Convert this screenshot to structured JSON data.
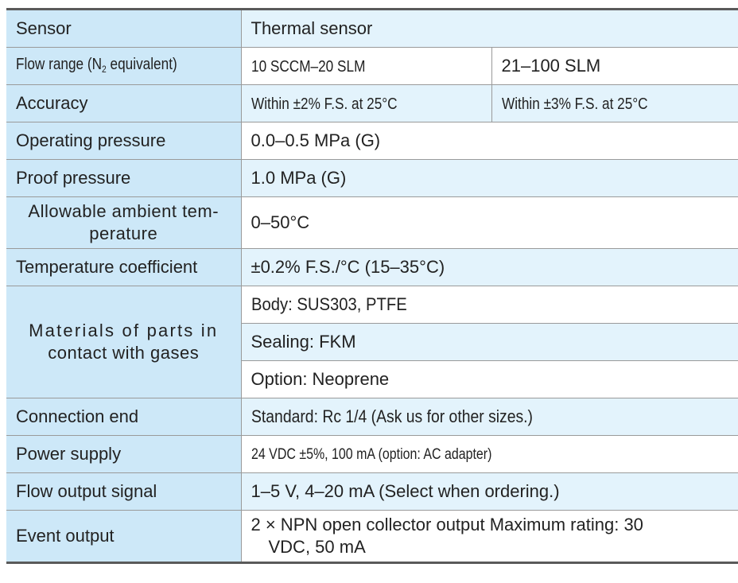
{
  "rows": {
    "sensor": {
      "label": "Sensor",
      "value": "Thermal sensor"
    },
    "flow_range": {
      "label_pre": "Flow range (N",
      "label_sub": "2",
      "label_post": " equivalent)",
      "value_a": "10 SCCM–20 SLM",
      "value_b": "21–100 SLM"
    },
    "accuracy": {
      "label": "Accuracy",
      "value_a": "Within ±2% F.S. at 25°C",
      "value_b": "Within ±3% F.S. at 25°C"
    },
    "operating_pressure": {
      "label": "Operating pressure",
      "value": "0.0–0.5 MPa (G)"
    },
    "proof_pressure": {
      "label": "Proof pressure",
      "value": "1.0 MPa (G)"
    },
    "ambient_temp": {
      "label_line1": "Allowable ambient tem-",
      "label_line2": "perature",
      "value": "0–50°C"
    },
    "temp_coefficient": {
      "label": "Temperature coefficient",
      "value": "±0.2% F.S./°C (15–35°C)"
    },
    "materials": {
      "label_line1": "Materials of parts in",
      "label_line2": "contact with gases",
      "body": "Body: SUS303, PTFE",
      "sealing": "Sealing: FKM",
      "option": "Option: Neoprene"
    },
    "connection_end": {
      "label": "Connection end",
      "value": "Standard: Rc 1/4 (Ask us for other sizes.)"
    },
    "power_supply": {
      "label": "Power supply",
      "value": "24 VDC ±5%, 100 mA (option: AC adapter)"
    },
    "flow_output": {
      "label": "Flow output signal",
      "value": "1–5 V, 4–20 mA (Select when ordering.)"
    },
    "event_output": {
      "label": "Event output",
      "value_line1": "2 × NPN open collector output Maximum rating: 30",
      "value_line2": "VDC, 50 mA"
    }
  },
  "colors": {
    "label_bg": "#cde8f8",
    "alt_bg": "#e3f3fc",
    "rule": "#5a5a5a"
  }
}
